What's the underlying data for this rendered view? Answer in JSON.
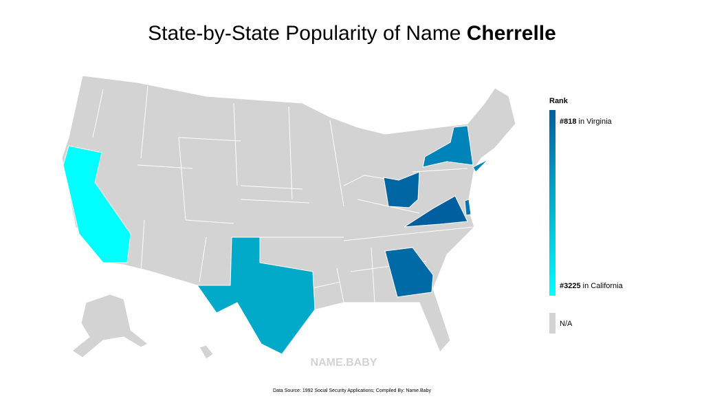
{
  "title": {
    "text": "State-by-State Popularity of Name ",
    "name": "Cherrelle"
  },
  "legend": {
    "heading": "Rank",
    "top": {
      "rank": "#818",
      "place": " in Virginia",
      "color": "#005f9e"
    },
    "bottom": {
      "rank": "#3225",
      "place": " in California",
      "color": "#00ffff"
    },
    "na": {
      "label": "N/A",
      "color": "#d3d3d3"
    }
  },
  "watermark": "NAME.BABY",
  "footer": "Data Source: 1992 Social Security Applications; Compiled By: Name.Baby"
}
